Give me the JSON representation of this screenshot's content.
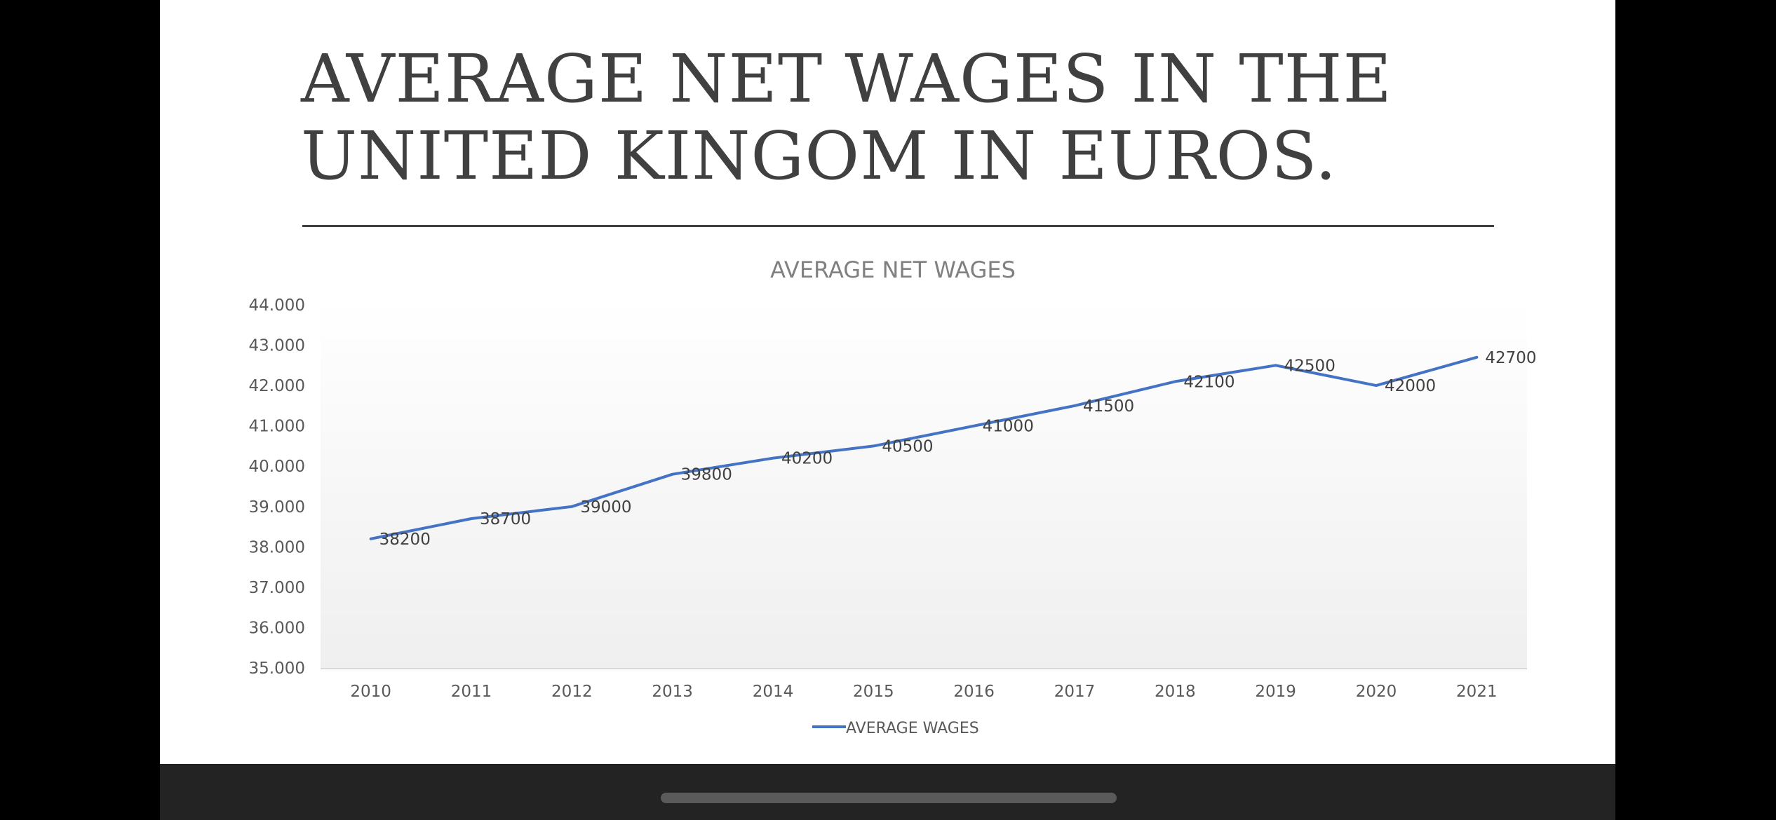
{
  "slide": {
    "title": "AVERAGE NET WAGES IN THE\nUNITED KINGOM IN EUROS."
  },
  "colors": {
    "line": "#4472c4",
    "title_text": "#404040",
    "axis_text": "#595959",
    "chart_title_text": "#808080"
  },
  "chart_data": {
    "type": "line",
    "title": "AVERAGE NET WAGES",
    "categories": [
      "2010",
      "2011",
      "2012",
      "2013",
      "2014",
      "2015",
      "2016",
      "2017",
      "2018",
      "2019",
      "2020",
      "2021"
    ],
    "series": [
      {
        "name": "AVERAGE WAGES",
        "values": [
          38200,
          38700,
          39000,
          39800,
          40200,
          40500,
          41000,
          41500,
          42100,
          42500,
          42000,
          42700
        ],
        "data_labels": [
          "38200",
          "38700",
          "39000",
          "39800",
          "40200",
          "40500",
          "41000",
          "41500",
          "42100",
          "42500",
          "42000",
          "42700"
        ]
      }
    ],
    "y_tick_values": [
      35000,
      36000,
      37000,
      38000,
      39000,
      40000,
      41000,
      42000,
      43000,
      44000
    ],
    "y_tick_labels": [
      "35.000",
      "36.000",
      "37.000",
      "38.000",
      "39.000",
      "40.000",
      "41.000",
      "42.000",
      "43.000",
      "44.000"
    ],
    "ylim": [
      35000,
      44000
    ],
    "xlabel": "",
    "ylabel": "",
    "grid": false,
    "legend_position": "bottom"
  }
}
